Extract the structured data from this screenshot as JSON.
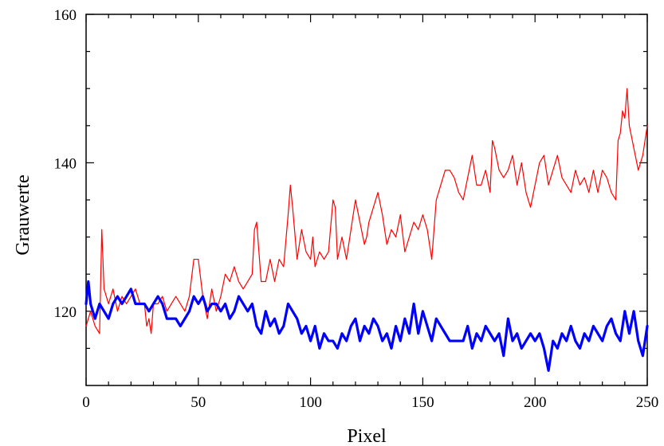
{
  "chart_data": {
    "type": "line",
    "title": "",
    "xlabel": "Pixel",
    "ylabel": "Grauwerte",
    "xlim": [
      0,
      250
    ],
    "ylim": [
      110,
      160
    ],
    "xticks": [
      "0",
      "50",
      "100",
      "150",
      "200",
      "250"
    ],
    "yticks": [
      "120",
      "140",
      "160"
    ],
    "grid": false,
    "legend": "none",
    "series": [
      {
        "color": "#ff0000",
        "line_weight": "thin",
        "x": [
          0,
          2,
          4,
          6,
          7,
          8,
          10,
          12,
          14,
          16,
          18,
          20,
          22,
          24,
          26,
          27,
          28,
          29,
          30,
          32,
          34,
          36,
          38,
          40,
          42,
          44,
          46,
          48,
          50,
          52,
          54,
          56,
          58,
          60,
          62,
          64,
          66,
          68,
          70,
          72,
          74,
          75,
          76,
          78,
          80,
          82,
          84,
          86,
          88,
          90,
          91,
          92,
          94,
          96,
          98,
          100,
          101,
          102,
          104,
          106,
          108,
          110,
          111,
          112,
          114,
          116,
          118,
          120,
          122,
          124,
          125,
          126,
          128,
          130,
          132,
          134,
          136,
          138,
          140,
          142,
          144,
          146,
          148,
          149,
          150,
          152,
          154,
          156,
          158,
          160,
          162,
          164,
          166,
          168,
          170,
          172,
          174,
          176,
          178,
          180,
          181,
          182,
          184,
          186,
          188,
          190,
          192,
          194,
          196,
          198,
          200,
          202,
          204,
          206,
          208,
          210,
          212,
          214,
          216,
          218,
          220,
          222,
          224,
          226,
          228,
          230,
          232,
          234,
          236,
          237,
          238,
          239,
          240,
          241,
          242,
          244,
          246,
          248,
          250
        ],
        "y": [
          118,
          120,
          118,
          117,
          131,
          123,
          121,
          123,
          120,
          122,
          121,
          122,
          123,
          121,
          121,
          118,
          119,
          117,
          121,
          121,
          122,
          120,
          121,
          122,
          121,
          120,
          122,
          127,
          127,
          122,
          119,
          123,
          120,
          122,
          125,
          124,
          126,
          124,
          123,
          124,
          125,
          131,
          132,
          124,
          124,
          127,
          124,
          127,
          126,
          133,
          137,
          134,
          127,
          131,
          128,
          127,
          130,
          126,
          128,
          127,
          128,
          135,
          134,
          127,
          130,
          127,
          131,
          135,
          132,
          129,
          130,
          132,
          134,
          136,
          133,
          129,
          131,
          130,
          133,
          128,
          130,
          132,
          131,
          132,
          133,
          131,
          127,
          135,
          137,
          139,
          139,
          138,
          136,
          135,
          138,
          141,
          137,
          137,
          139,
          136,
          143,
          142,
          139,
          138,
          139,
          141,
          137,
          140,
          136,
          134,
          137,
          140,
          141,
          137,
          139,
          141,
          138,
          137,
          136,
          139,
          137,
          138,
          136,
          139,
          136,
          139,
          138,
          136,
          135,
          143,
          144,
          147,
          146,
          150,
          145,
          142,
          139,
          141,
          145
        ]
      },
      {
        "color": "#0000ff",
        "line_weight": "thick",
        "x": [
          0,
          1,
          2,
          4,
          6,
          8,
          10,
          12,
          14,
          16,
          18,
          20,
          22,
          24,
          26,
          28,
          30,
          32,
          34,
          36,
          38,
          40,
          42,
          44,
          46,
          48,
          50,
          52,
          54,
          56,
          58,
          60,
          62,
          64,
          66,
          68,
          70,
          72,
          74,
          76,
          78,
          80,
          82,
          84,
          86,
          88,
          90,
          92,
          94,
          96,
          98,
          100,
          102,
          104,
          106,
          108,
          110,
          112,
          114,
          116,
          118,
          120,
          122,
          124,
          126,
          128,
          130,
          132,
          134,
          136,
          138,
          140,
          142,
          144,
          146,
          148,
          150,
          152,
          154,
          156,
          158,
          160,
          162,
          164,
          166,
          168,
          170,
          172,
          174,
          176,
          178,
          180,
          182,
          184,
          186,
          188,
          190,
          192,
          194,
          196,
          198,
          200,
          202,
          204,
          206,
          208,
          210,
          212,
          214,
          216,
          218,
          220,
          222,
          224,
          226,
          228,
          230,
          232,
          234,
          236,
          238,
          240,
          242,
          244,
          246,
          248,
          250
        ],
        "y": [
          121,
          124,
          121,
          119,
          121,
          120,
          119,
          121,
          122,
          121,
          122,
          123,
          121,
          121,
          121,
          120,
          121,
          122,
          121,
          119,
          119,
          119,
          118,
          119,
          120,
          122,
          121,
          122,
          120,
          121,
          121,
          120,
          121,
          119,
          120,
          122,
          121,
          120,
          121,
          118,
          117,
          120,
          118,
          119,
          117,
          118,
          121,
          120,
          119,
          117,
          118,
          116,
          118,
          115,
          117,
          116,
          116,
          115,
          117,
          116,
          118,
          119,
          116,
          118,
          117,
          119,
          118,
          116,
          117,
          115,
          118,
          116,
          119,
          117,
          121,
          117,
          120,
          118,
          116,
          119,
          118,
          117,
          116,
          116,
          116,
          116,
          118,
          115,
          117,
          116,
          118,
          117,
          116,
          117,
          114,
          119,
          116,
          117,
          115,
          116,
          117,
          116,
          117,
          115,
          112,
          116,
          115,
          117,
          116,
          118,
          116,
          115,
          117,
          116,
          118,
          117,
          116,
          118,
          119,
          117,
          116,
          120,
          117,
          120,
          116,
          114,
          118
        ]
      }
    ]
  }
}
